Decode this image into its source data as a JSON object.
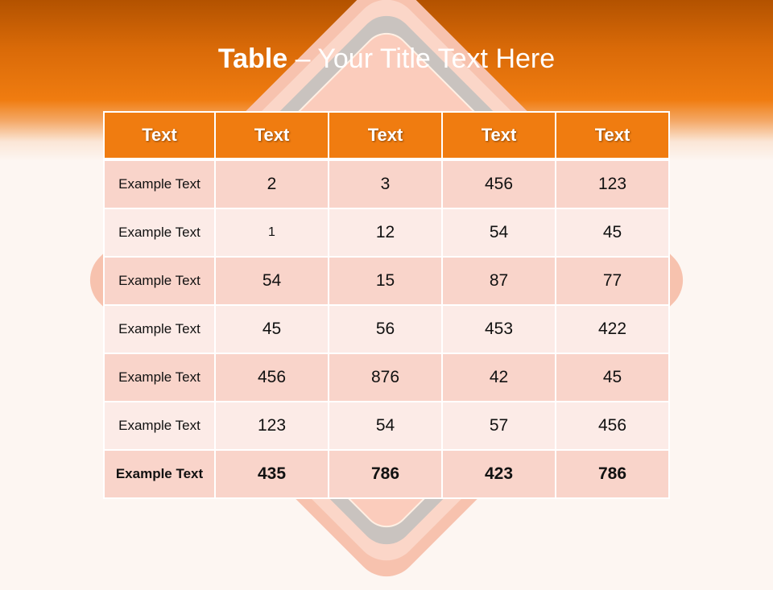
{
  "slide": {
    "title_bold": "Table",
    "title_rest": " – Your Title Text Here"
  },
  "table": {
    "headers": [
      "Text",
      "Text",
      "Text",
      "Text",
      "Text"
    ],
    "rows": [
      [
        "Example Text",
        "2",
        "3",
        "456",
        "123"
      ],
      [
        "Example Text",
        "1",
        "12",
        "54",
        "45"
      ],
      [
        "Example Text",
        "54",
        "15",
        "87",
        "77"
      ],
      [
        "Example Text",
        "45",
        "56",
        "453",
        "422"
      ],
      [
        "Example Text",
        "456",
        "876",
        "42",
        "45"
      ],
      [
        "Example Text",
        "123",
        "54",
        "57",
        "456"
      ],
      [
        "Example Text",
        "435",
        "786",
        "423",
        "786"
      ]
    ]
  },
  "colors": {
    "accent": "#f07c10",
    "row_dark": "#f9d4ca",
    "row_light": "#fcebe7"
  }
}
